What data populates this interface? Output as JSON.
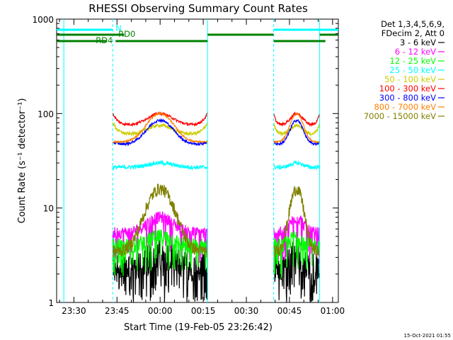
{
  "chart_data": {
    "type": "line",
    "title": "RHESSI Observing Summary Count Rates",
    "xlabel": "Start Time (19-Feb-05 23:26:42)",
    "ylabel": "Count Rate (s⁻¹ detector⁻¹)",
    "y_scale": "log",
    "ylim": [
      1,
      1000
    ],
    "xlim_minutes_after_start": [
      -3,
      37
    ],
    "x_tick_labels": [
      "23:30",
      "23:45",
      "00:00",
      "00:15",
      "00:30",
      "00:45",
      "01:00"
    ],
    "x_tick_minutes": [
      -30,
      -15,
      0,
      15,
      30,
      45,
      60
    ],
    "y_tick_labels": [
      "1",
      "10",
      "100",
      "1000"
    ],
    "y_tick_values": [
      1,
      10,
      100,
      1000
    ],
    "legend_position": "top-right",
    "legend_header": [
      "Det 1,3,4,5,6,9,",
      "FDecim 2, Att 0"
    ],
    "flags": {
      "N_label": "N",
      "RD0_label": "RD0",
      "RD4_label": "RD4",
      "N_color": "#00ffff",
      "RD_color": "#008000"
    },
    "night_boundaries_minutes": [
      -33.5,
      -16.5,
      16.5,
      39.5,
      55.5
    ],
    "series": [
      {
        "name": "3 - 6 keV",
        "color": "#000000",
        "day": 2.5,
        "peak": 3.5,
        "noise": 0.35
      },
      {
        "name": "6 - 12 keV",
        "color": "#ff00ff",
        "day": 5.5,
        "peak": 8,
        "noise": 0.15
      },
      {
        "name": "12 - 25 keV",
        "color": "#00ff00",
        "day": 4,
        "peak": 5,
        "noise": 0.2
      },
      {
        "name": "25 - 50 keV",
        "color": "#00ffff",
        "day": 27,
        "peak": 30,
        "noise": 0.05
      },
      {
        "name": "50 - 100 keV",
        "color": "#cccc00",
        "day": 60,
        "peak": 75,
        "noise": 0.04
      },
      {
        "name": "100 - 300 keV",
        "color": "#ff0000",
        "day": 75,
        "peak": 100,
        "noise": 0.03
      },
      {
        "name": "300 - 800 keV",
        "color": "#0000ff",
        "day": 47,
        "peak": 85,
        "noise": 0.03
      },
      {
        "name": "800 - 7000 keV",
        "color": "#ff8000",
        "day": 50,
        "peak": 100,
        "noise": 0.02
      },
      {
        "name": "7000 - 15000 keV",
        "color": "#808000",
        "day": 3.5,
        "peak": 16,
        "noise": 0.15
      }
    ],
    "footer_timestamp": "15-Oct-2021 01:55"
  }
}
